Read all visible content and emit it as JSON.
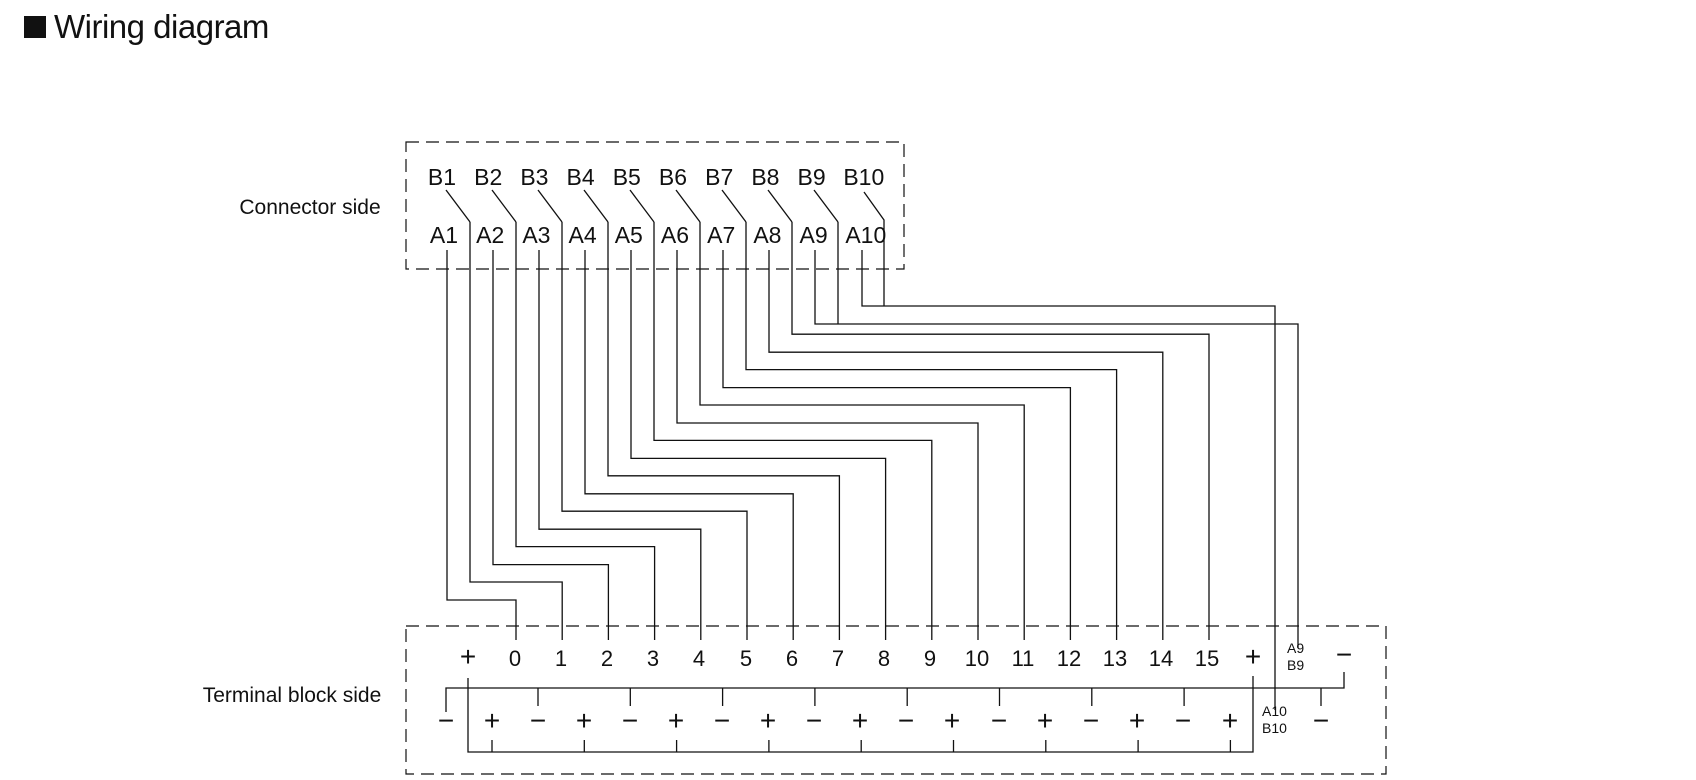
{
  "heading": {
    "title": "Wiring diagram"
  },
  "labels": {
    "connector_side": "Connector side",
    "terminal_block_side": "Terminal block side"
  },
  "connector": {
    "top_row": [
      "B1",
      "B2",
      "B3",
      "B4",
      "B5",
      "B6",
      "B7",
      "B8",
      "B9",
      "B10"
    ],
    "bottom_row": [
      "A1",
      "A2",
      "A3",
      "A4",
      "A5",
      "A6",
      "A7",
      "A8",
      "A9",
      "A10"
    ]
  },
  "terminal": {
    "top_row": [
      "+",
      "0",
      "1",
      "2",
      "3",
      "4",
      "5",
      "6",
      "7",
      "8",
      "9",
      "10",
      "11",
      "12",
      "13",
      "14",
      "15",
      "+",
      "A9\nB9",
      "−"
    ],
    "bottom_row": [
      "−",
      "+",
      "−",
      "+",
      "−",
      "+",
      "−",
      "+",
      "−",
      "+",
      "−",
      "+",
      "−",
      "+",
      "−",
      "+",
      "−",
      "+",
      "A10\nB10",
      "−"
    ]
  },
  "colors": {
    "line": "#111111",
    "text": "#111111"
  }
}
